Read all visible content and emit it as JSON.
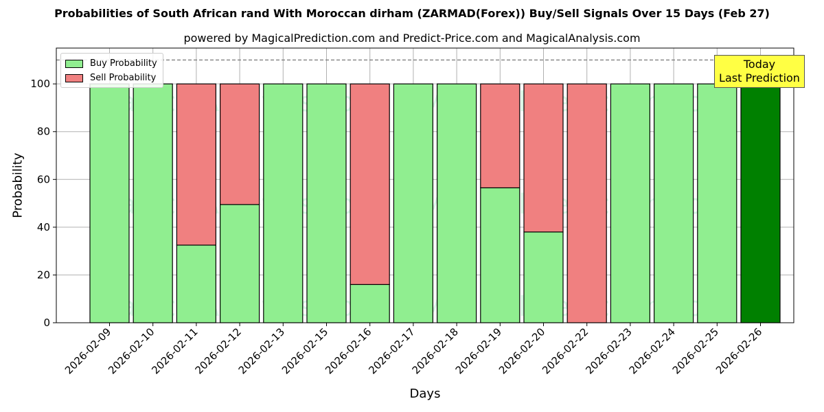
{
  "title": "Probabilities of South African rand With Moroccan dirham (ZARMAD(Forex)) Buy/Sell Signals Over 15 Days (Feb 27)",
  "subtitle": "powered by MagicalPrediction.com and Predict-Price.com and MagicalAnalysis.com",
  "watermarks": [
    "MagicalAnalysis.com",
    "MagicalPrediction.com"
  ],
  "annotation": {
    "line1": "Today",
    "line2": "Last Prediction"
  },
  "colors": {
    "buy": "#90ee90",
    "sell": "#f08080",
    "today_buy": "#008000",
    "annotation_bg": "#ffff44"
  },
  "chart_data": {
    "type": "bar",
    "stacked": true,
    "xlabel": "Days",
    "ylabel": "Probability",
    "ylim": [
      0,
      115
    ],
    "yticks": [
      0,
      20,
      40,
      60,
      80,
      100
    ],
    "reference_line": 110,
    "grid": true,
    "legend_position": "top-left",
    "categories": [
      "2026-02-09",
      "2026-02-10",
      "2026-02-11",
      "2026-02-12",
      "2026-02-13",
      "2026-02-15",
      "2026-02-16",
      "2026-02-17",
      "2026-02-18",
      "2026-02-19",
      "2026-02-20",
      "2026-02-22",
      "2026-02-23",
      "2026-02-24",
      "2026-02-25",
      "2026-02-26"
    ],
    "series": [
      {
        "name": "Buy Probability",
        "values": [
          100,
          100,
          32.5,
          49.5,
          100,
          100,
          16,
          100,
          100,
          56.5,
          38,
          0,
          100,
          100,
          100,
          100
        ]
      },
      {
        "name": "Sell Probability",
        "values": [
          0,
          0,
          67.5,
          50.5,
          0,
          0,
          84,
          0,
          0,
          43.5,
          62,
          100,
          0,
          0,
          0,
          0
        ]
      }
    ]
  }
}
